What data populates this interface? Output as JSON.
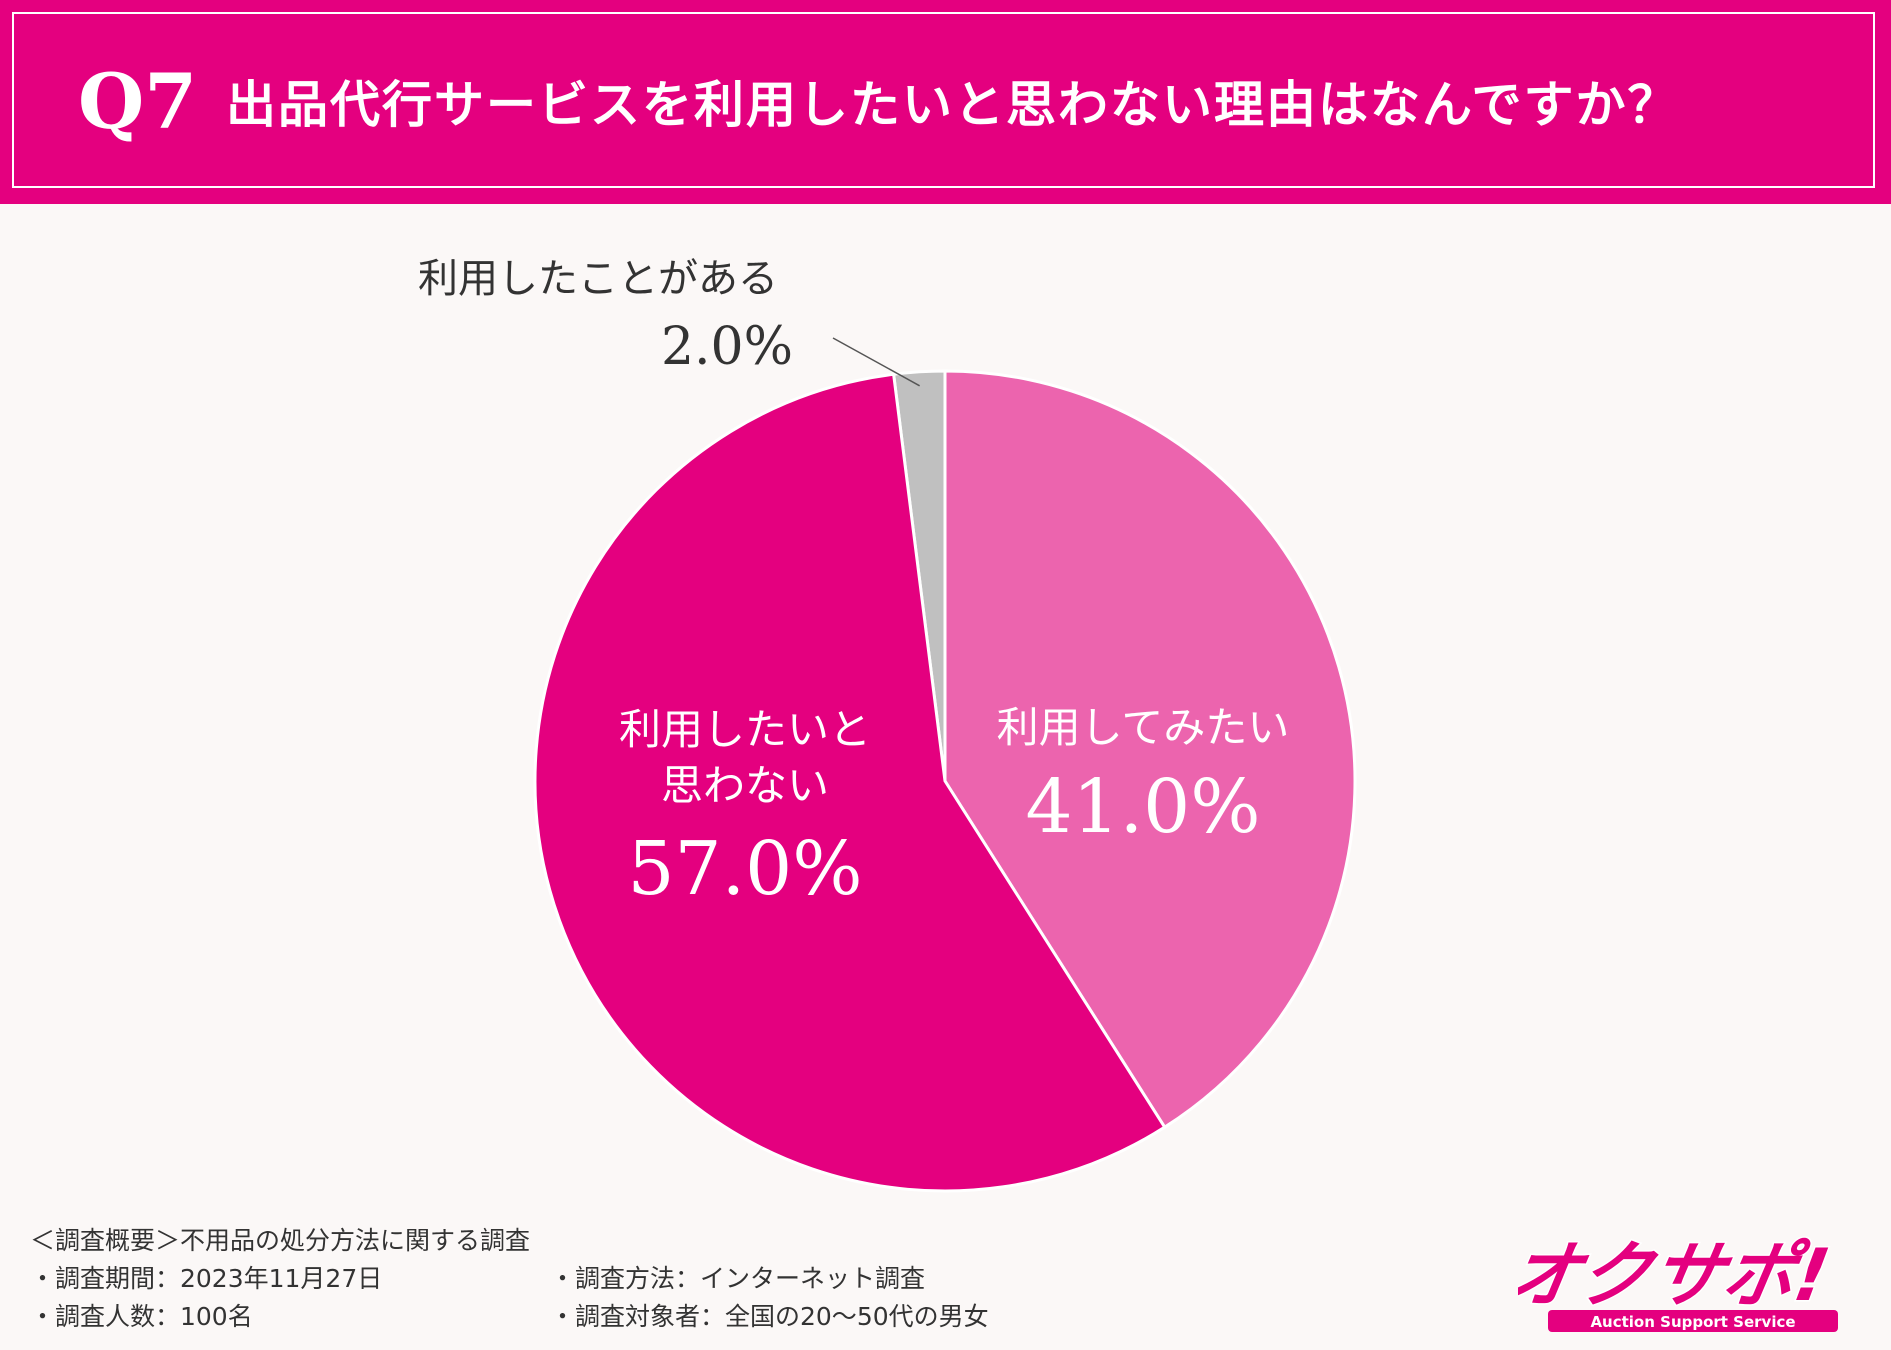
{
  "header": {
    "q_number": "Q7",
    "title": "出品代行サービスを利用したいと思わない理由はなんですか？"
  },
  "colors": {
    "brand": "#e4007f",
    "slice_tried": "#c0c0c0",
    "slice_want": "#ec64ae",
    "slice_dont_want": "#e4007f"
  },
  "chart_data": {
    "type": "pie",
    "title": "出品代行サービスを利用したいと思わない理由はなんですか？",
    "slices": [
      {
        "label": "利用したことがある",
        "label_lines": [
          "利用したことがある"
        ],
        "value": 2.0,
        "value_text": "2.0%",
        "color": "#c0c0c0"
      },
      {
        "label": "利用してみたい",
        "label_lines": [
          "利用してみたい"
        ],
        "value": 41.0,
        "value_text": "41.0%",
        "color": "#ec64ae"
      },
      {
        "label": "利用したいと思わない",
        "label_lines": [
          "利用したいと",
          "思わない"
        ],
        "value": 57.0,
        "value_text": "57.0%",
        "color": "#e4007f"
      }
    ],
    "unit": "%"
  },
  "footer": {
    "heading": "＜調査概要＞不用品の処分方法に関する調査",
    "period": "・調査期間：2023年11月27日",
    "method": "・調査方法：インターネット調査",
    "count": "・調査人数：100名",
    "target": "・調査対象者：全国の20〜50代の男女"
  },
  "logo": {
    "text": "オクサポ!",
    "tagline": "Auction Support Service"
  }
}
